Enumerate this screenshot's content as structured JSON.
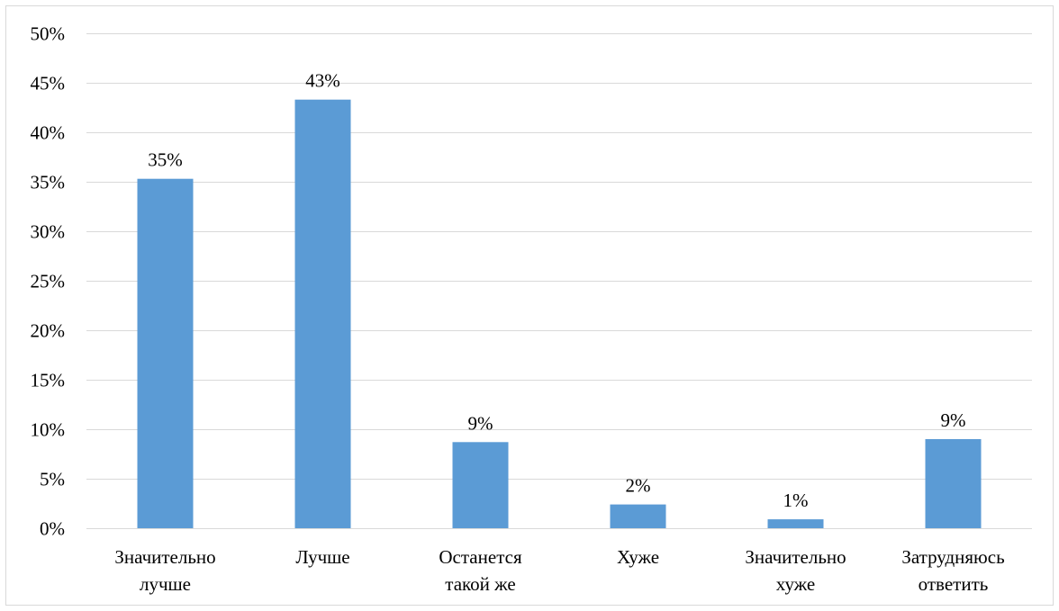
{
  "chart_data": {
    "type": "bar",
    "categories": [
      [
        "Значительно",
        "лучше"
      ],
      [
        "Лучше"
      ],
      [
        "Останется",
        "такой же"
      ],
      [
        "Хуже"
      ],
      [
        "Значительно",
        "хуже"
      ],
      [
        "Затрудняюсь",
        "ответить"
      ]
    ],
    "values": [
      35.3,
      43.3,
      8.7,
      2.4,
      0.9,
      9.0
    ],
    "data_labels": [
      "35%",
      "43%",
      "9%",
      "2%",
      "1%",
      "9%"
    ],
    "ylim": [
      0,
      50
    ],
    "y_ticks": [
      0,
      5,
      10,
      15,
      20,
      25,
      30,
      35,
      40,
      45,
      50
    ],
    "y_tick_labels": [
      "0%",
      "5%",
      "10%",
      "15%",
      "20%",
      "25%",
      "30%",
      "35%",
      "40%",
      "45%",
      "50%"
    ],
    "title": "",
    "xlabel": "",
    "ylabel": "",
    "grid": true,
    "bar_color": "#5b9bd5",
    "grid_color": "#d9d9d9"
  }
}
